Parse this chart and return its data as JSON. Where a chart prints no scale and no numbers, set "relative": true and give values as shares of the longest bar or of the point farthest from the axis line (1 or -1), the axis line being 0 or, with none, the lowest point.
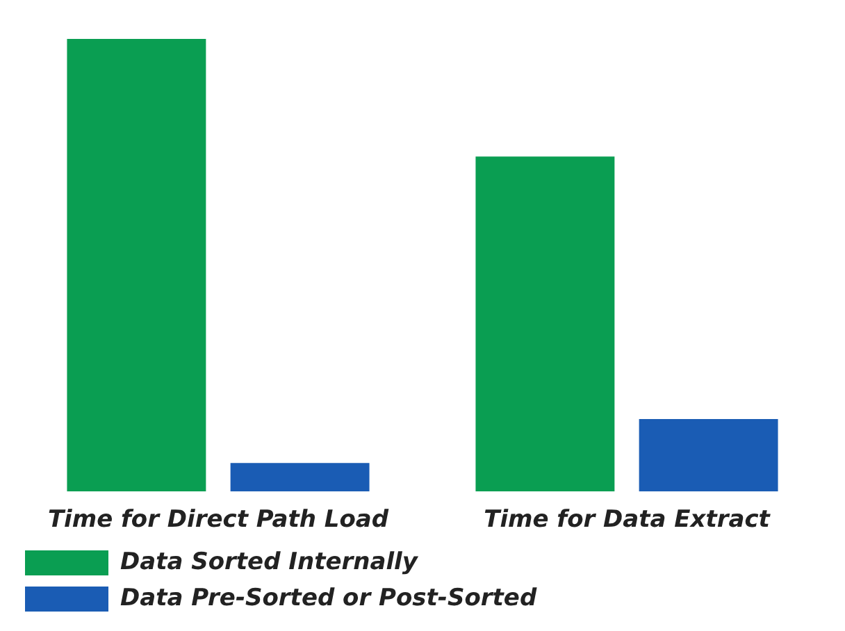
{
  "chart_data": {
    "type": "bar",
    "relative": true,
    "categories": [
      "Time for Direct Path Load",
      "Time for Data Extract"
    ],
    "series": [
      {
        "name": "Data Sorted Internally",
        "color": "#0a9e52",
        "values": [
          1,
          0.74
        ]
      },
      {
        "name": "Data Pre-Sorted or Post-Sorted",
        "color": "#1a5cb4",
        "values": [
          0.063,
          0.16
        ]
      }
    ],
    "legend": "bottom",
    "grid": false
  }
}
